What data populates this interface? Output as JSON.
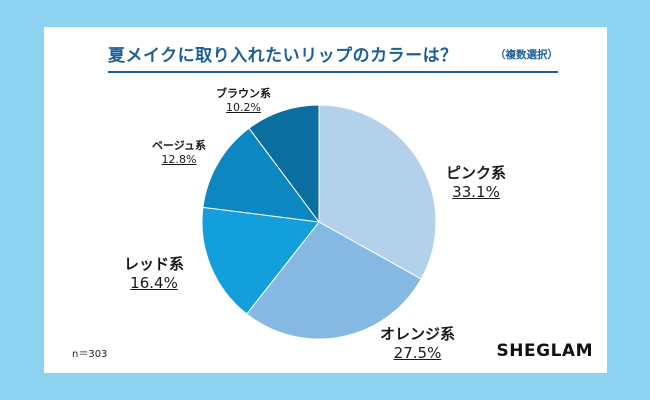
{
  "chart_data": {
    "type": "pie",
    "title": "夏メイクに取り入れたいリップのカラーは？",
    "subtitle": "（複数選択）",
    "slices": [
      {
        "label": "ピンク系",
        "value": 33.1,
        "value_label": "33.1%",
        "color": "#b3d1ea"
      },
      {
        "label": "オレンジ系",
        "value": 27.5,
        "value_label": "27.5%",
        "color": "#85b8e2"
      },
      {
        "label": "レッド系",
        "value": 16.4,
        "value_label": "16.4%",
        "color": "#139fdb"
      },
      {
        "label": "ベージュ系",
        "value": 12.8,
        "value_label": "12.8%",
        "color": "#0c87c2"
      },
      {
        "label": "ブラウン系",
        "value": 10.2,
        "value_label": "10.2%",
        "color": "#0a6fa0"
      }
    ]
  },
  "footer": {
    "n_label": "n＝303",
    "brand": "SHEGLAM"
  },
  "colors": {
    "background": "#8fd3f2",
    "card": "#ffffff",
    "title": "#1c5f98"
  }
}
